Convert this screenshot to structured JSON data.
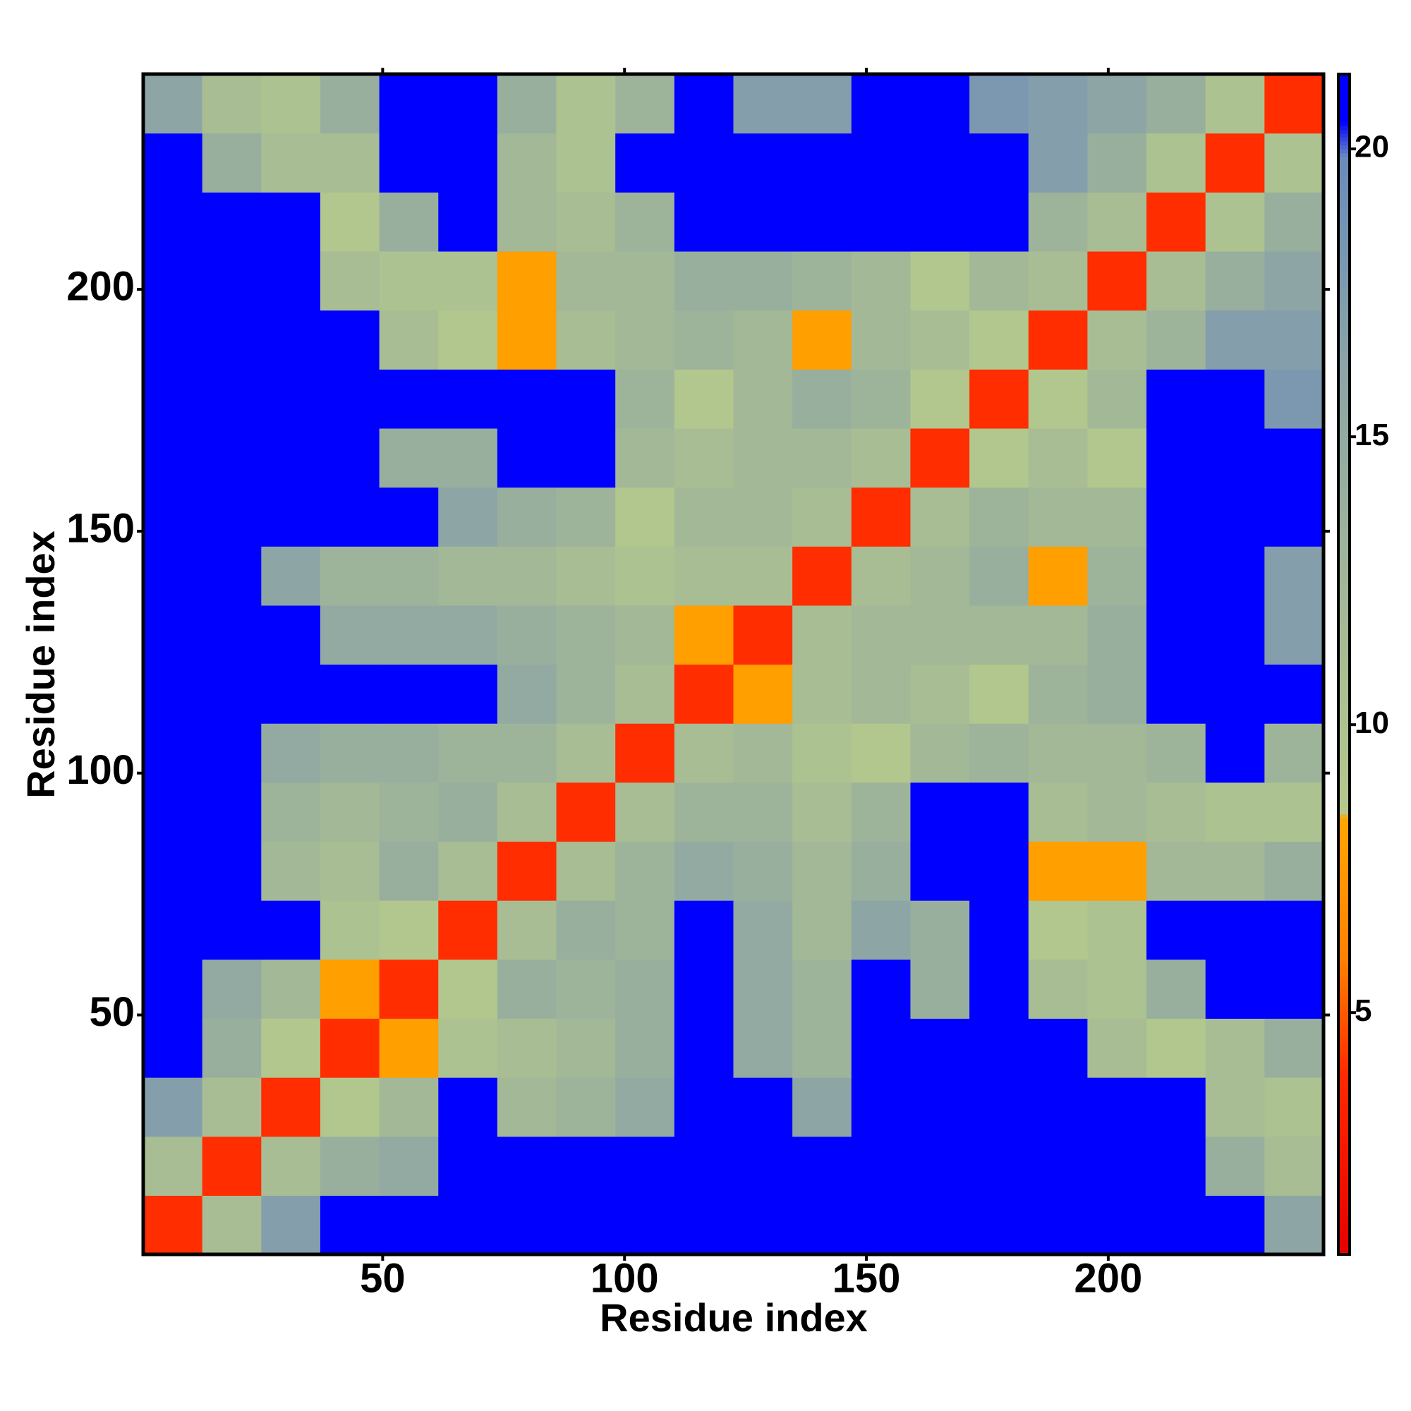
{
  "chart_data": {
    "type": "heatmap",
    "x_label": "Residue index",
    "y_label": "Residue index",
    "xlim": [
      0.5,
      244.5
    ],
    "ylim": [
      0.5,
      244.5
    ],
    "xticks": [
      50,
      100,
      150,
      200
    ],
    "yticks": [
      50,
      100,
      150,
      200
    ],
    "clim": [
      0.8,
      21.3
    ],
    "cticks": [
      5,
      10,
      15,
      20
    ],
    "x": [
      6.6,
      18.8,
      31,
      43.2,
      55.4,
      67.6,
      79.8,
      92,
      104.2,
      116.4,
      128.6,
      140.8,
      153,
      165.2,
      177.4,
      189.6,
      201.8,
      214,
      226.2,
      238.4
    ],
    "y": [
      6.6,
      18.8,
      31,
      43.2,
      55.4,
      67.6,
      79.8,
      92,
      104.2,
      116.4,
      128.6,
      140.8,
      153,
      165.2,
      177.4,
      189.6,
      201.8,
      214,
      226.2,
      238.4
    ],
    "values": [
      [
        4,
        11,
        17,
        21,
        21,
        21,
        21,
        21,
        21,
        21,
        21,
        21,
        21,
        21,
        21,
        21,
        21,
        21,
        21,
        16
      ],
      [
        11,
        4,
        11,
        14,
        15,
        21,
        21,
        21,
        21,
        21,
        21,
        21,
        21,
        21,
        21,
        21,
        21,
        21,
        14,
        11
      ],
      [
        17,
        11,
        4,
        9,
        12,
        21,
        12,
        13,
        15,
        21,
        21,
        16,
        21,
        21,
        21,
        21,
        21,
        21,
        11,
        10
      ],
      [
        21,
        14,
        9,
        4,
        8,
        10,
        11,
        12,
        14,
        21,
        15,
        13,
        21,
        21,
        21,
        21,
        11,
        9,
        11,
        14
      ],
      [
        21,
        15,
        12,
        8,
        4,
        9,
        14,
        13,
        14,
        21,
        15,
        13,
        21,
        14,
        21,
        11,
        10,
        14,
        21,
        21
      ],
      [
        21,
        21,
        21,
        10,
        9,
        4,
        11,
        14,
        13,
        21,
        15,
        12,
        16,
        14,
        21,
        9,
        10,
        21,
        21,
        21
      ],
      [
        21,
        21,
        12,
        11,
        14,
        11,
        4,
        11,
        13,
        15,
        14,
        12,
        14,
        21,
        21,
        8,
        8,
        12,
        12,
        14
      ],
      [
        21,
        21,
        13,
        12,
        13,
        14,
        11,
        4,
        11,
        13,
        13,
        11,
        13,
        21,
        21,
        11,
        12,
        11,
        10,
        10
      ],
      [
        21,
        21,
        15,
        14,
        14,
        13,
        13,
        11,
        4,
        11,
        12,
        10,
        9,
        12,
        13,
        12,
        12,
        13,
        21,
        13
      ],
      [
        21,
        21,
        21,
        21,
        21,
        21,
        15,
        13,
        11,
        4,
        8,
        11,
        12,
        11,
        9,
        13,
        14,
        21,
        21,
        21
      ],
      [
        21,
        21,
        21,
        15,
        15,
        15,
        14,
        13,
        12,
        8,
        4,
        11,
        12,
        12,
        12,
        12,
        14,
        21,
        21,
        17
      ],
      [
        21,
        21,
        16,
        13,
        13,
        12,
        12,
        11,
        10,
        11,
        11,
        4,
        11,
        12,
        14,
        8,
        13,
        21,
        21,
        17
      ],
      [
        21,
        21,
        21,
        21,
        21,
        16,
        14,
        13,
        9,
        12,
        12,
        11,
        4,
        11,
        13,
        12,
        12,
        21,
        21,
        21
      ],
      [
        21,
        21,
        21,
        21,
        14,
        14,
        21,
        21,
        12,
        11,
        12,
        12,
        11,
        4,
        9,
        11,
        9,
        21,
        21,
        21
      ],
      [
        21,
        21,
        21,
        21,
        21,
        21,
        21,
        21,
        13,
        9,
        12,
        14,
        13,
        9,
        4,
        9,
        12,
        21,
        21,
        18
      ],
      [
        21,
        21,
        21,
        21,
        11,
        9,
        8,
        11,
        12,
        13,
        12,
        8,
        12,
        11,
        9,
        4,
        11,
        13,
        17,
        17
      ],
      [
        21,
        21,
        21,
        11,
        10,
        10,
        8,
        12,
        12,
        14,
        14,
        13,
        12,
        9,
        12,
        11,
        4,
        11,
        14,
        16
      ],
      [
        21,
        21,
        21,
        9,
        14,
        21,
        12,
        11,
        13,
        21,
        21,
        21,
        21,
        21,
        21,
        13,
        11,
        4,
        10,
        14
      ],
      [
        21,
        14,
        11,
        11,
        21,
        21,
        12,
        10,
        21,
        21,
        21,
        21,
        21,
        21,
        21,
        17,
        14,
        10,
        4,
        10
      ],
      [
        16,
        11,
        10,
        14,
        21,
        21,
        14,
        10,
        13,
        21,
        17,
        17,
        21,
        21,
        18,
        17,
        16,
        14,
        10,
        4
      ]
    ]
  }
}
